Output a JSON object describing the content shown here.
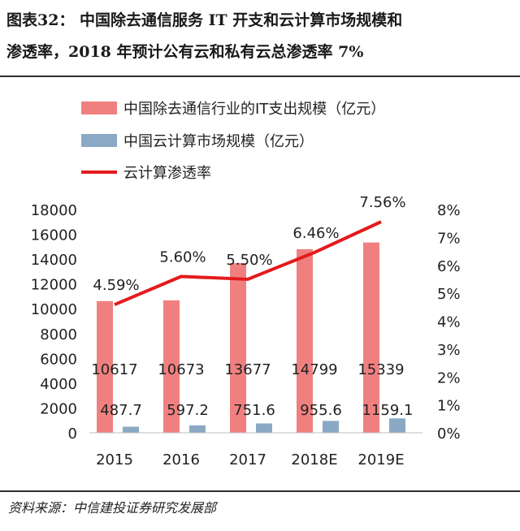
{
  "header": {
    "title_line1": "图表32：  中国除去通信服务 IT 开支和云计算市场规模和",
    "title_line2": "渗透率，2018 年预计公有云和私有云总渗透率 7%"
  },
  "footer": {
    "source": "资料来源：中信建投证券研究发展部"
  },
  "colors": {
    "it_spend": "#f08080",
    "cloud_market": "#8aa9c4",
    "penetration": "#e41a1c",
    "text": "#222222"
  },
  "chart_data": {
    "type": "bar",
    "categories": [
      "2015",
      "2016",
      "2017",
      "2018E",
      "2019E"
    ],
    "series": [
      {
        "name": "中国除去通信行业的IT支出规模（亿元）",
        "kind": "bar",
        "axis": "left",
        "values": [
          10617,
          10673,
          13677,
          14799,
          15339
        ],
        "labels": [
          "10617",
          "10673",
          "13677",
          "14799",
          "15339"
        ]
      },
      {
        "name": "中国云计算市场规模（亿元）",
        "kind": "bar",
        "axis": "left",
        "values": [
          487.7,
          597.2,
          751.6,
          955.6,
          1159.1
        ],
        "labels": [
          "487.7",
          "597.2",
          "751.6",
          "955.6",
          "1159.1"
        ]
      },
      {
        "name": "云计算渗透率",
        "kind": "line",
        "axis": "right",
        "values": [
          4.59,
          5.6,
          5.5,
          6.46,
          7.56
        ],
        "labels": [
          "4.59%",
          "5.60%",
          "5.50%",
          "6.46%",
          "7.56%"
        ]
      }
    ],
    "y_left": {
      "ylim": [
        0,
        18000
      ],
      "ticks": [
        "0",
        "2000",
        "4000",
        "6000",
        "8000",
        "10000",
        "12000",
        "14000",
        "16000",
        "18000"
      ]
    },
    "y_right": {
      "ylim": [
        0,
        8
      ],
      "ticks": [
        "0%",
        "1%",
        "2%",
        "3%",
        "4%",
        "5%",
        "6%",
        "7%",
        "8%"
      ]
    },
    "legend_position": "top-left",
    "grid": false
  }
}
